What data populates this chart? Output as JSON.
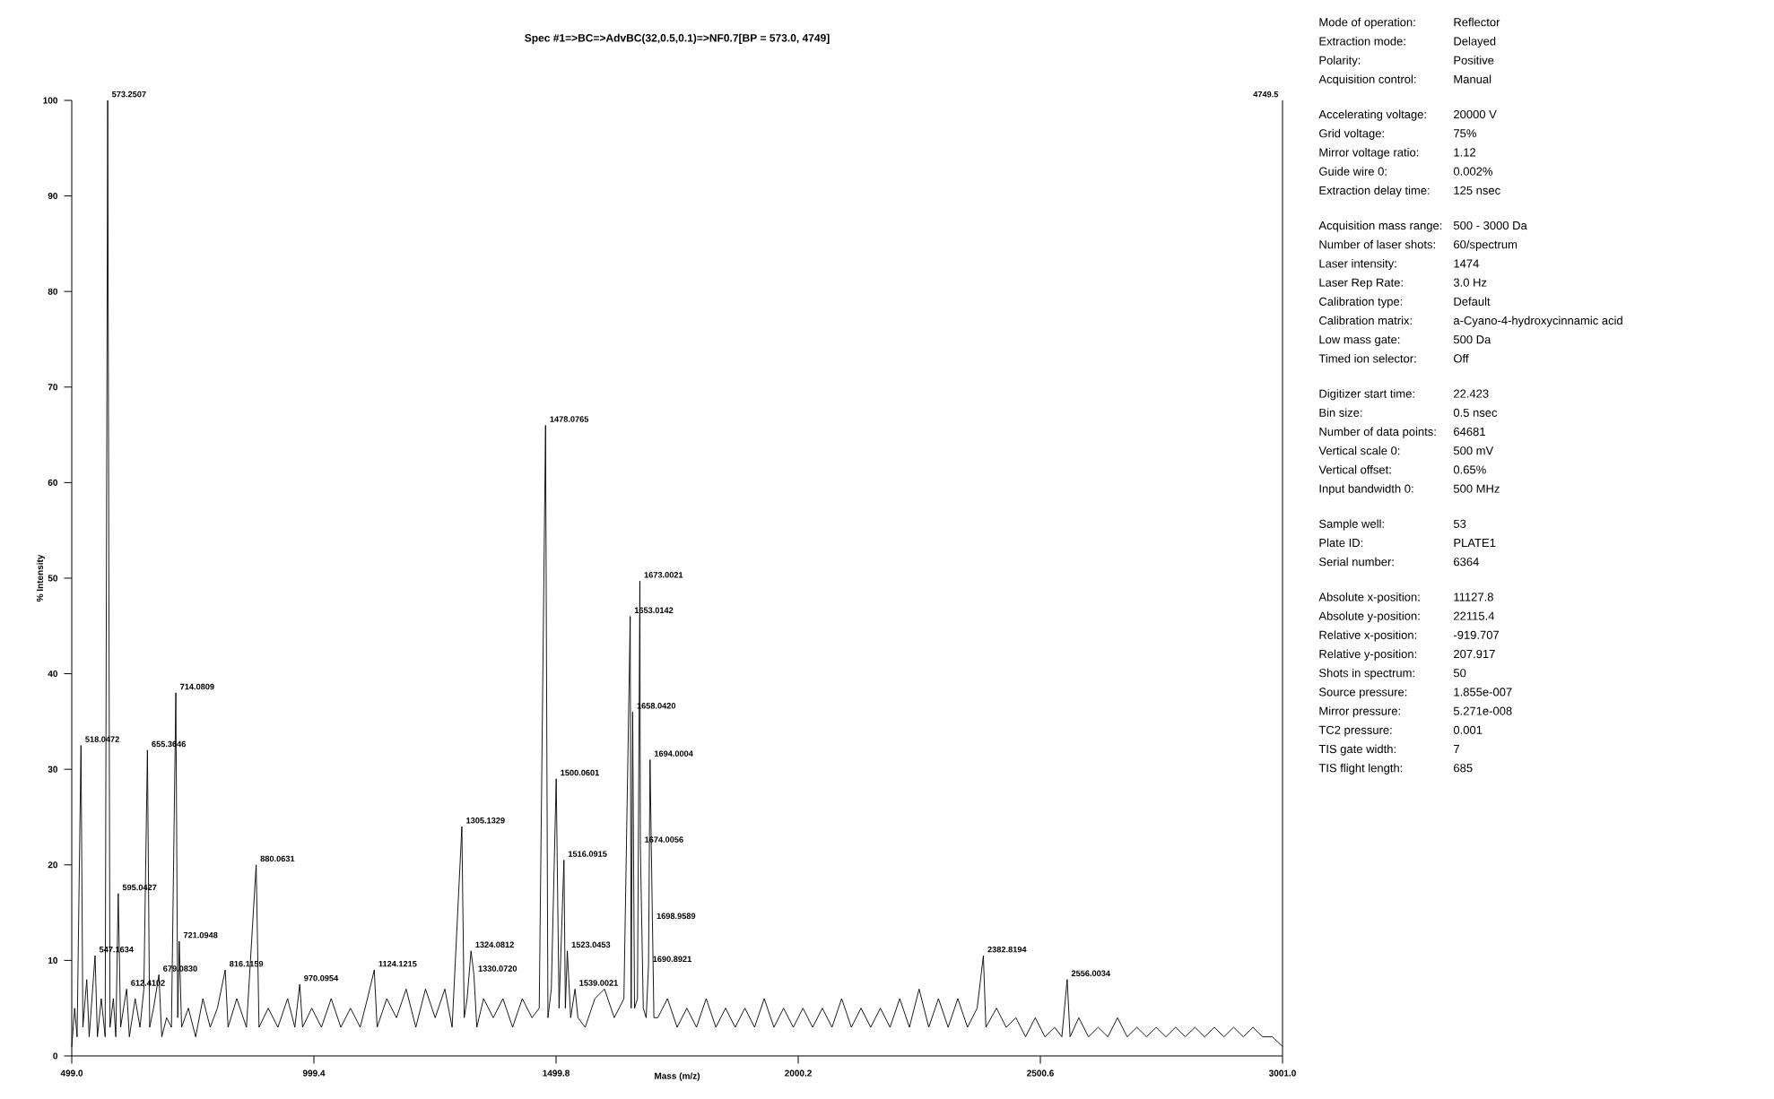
{
  "chart_data": [
    {
      "type": "line",
      "title": "Spec #1=>BC=>AdvBC(32,0.5,0.1)=>NF0.7[BP = 573.0, 4749]",
      "xlabel": "Mass (m/z)",
      "ylabel": "% Intensity",
      "xlim": [
        499.0,
        3001.0
      ],
      "ylim": [
        0,
        100
      ],
      "xticks": [
        {
          "value": 499.0,
          "label": "499.0"
        },
        {
          "value": 999.4,
          "label": "999.4"
        },
        {
          "value": 1499.8,
          "label": "1499.8"
        },
        {
          "value": 2000.2,
          "label": "2000.2"
        },
        {
          "value": 2500.6,
          "label": "2500.6"
        },
        {
          "value": 3001.0,
          "label": "3001.0"
        }
      ],
      "yticks": [
        0,
        10,
        20,
        30,
        40,
        50,
        60,
        70,
        80,
        90,
        100
      ],
      "series": [
        {
          "color": "#000000",
          "x": [
            499,
            505,
            510,
            518.0472,
            522,
            530,
            535,
            547.1634,
            552,
            560,
            568,
            573.2507,
            578,
            585,
            590,
            595.0427,
            600,
            606,
            612.4102,
            618,
            630,
            640,
            648,
            655.3646,
            660,
            668,
            679.083,
            685,
            695,
            705,
            714.0809,
            718,
            721.0948,
            726,
            740,
            755,
            770,
            785,
            800,
            816.1159,
            822,
            840,
            860,
            880.0631,
            886,
            905,
            925,
            945,
            960,
            970.0954,
            976,
            995,
            1015,
            1035,
            1055,
            1075,
            1095,
            1110,
            1124.1215,
            1130,
            1150,
            1170,
            1190,
            1210,
            1230,
            1250,
            1270,
            1285,
            1305.1329,
            1310,
            1316,
            1324.0812,
            1330.072,
            1336,
            1350,
            1370,
            1390,
            1410,
            1430,
            1450,
            1465,
            1478.0765,
            1483,
            1490,
            1500.0601,
            1506,
            1516.0915,
            1519,
            1523.0453,
            1530,
            1539.0021,
            1545,
            1560,
            1580,
            1600,
            1620,
            1640,
            1653.0142,
            1655,
            1658.042,
            1662,
            1668,
            1673.0021,
            1674.0056,
            1680,
            1686,
            1690.8921,
            1694.0004,
            1698.9589,
            1702,
            1710,
            1730,
            1750,
            1770,
            1790,
            1810,
            1830,
            1850,
            1870,
            1890,
            1910,
            1930,
            1950,
            1970,
            1990,
            2010,
            2030,
            2050,
            2070,
            2090,
            2110,
            2130,
            2150,
            2170,
            2190,
            2210,
            2230,
            2250,
            2270,
            2290,
            2310,
            2330,
            2350,
            2370,
            2382.8194,
            2388,
            2410,
            2430,
            2450,
            2470,
            2490,
            2510,
            2530,
            2545,
            2556.0034,
            2562,
            2580,
            2600,
            2620,
            2640,
            2660,
            2680,
            2700,
            2720,
            2740,
            2760,
            2780,
            2800,
            2820,
            2840,
            2860,
            2880,
            2900,
            2920,
            2940,
            2960,
            2980,
            3001
          ],
          "values": [
            1,
            5,
            2,
            32.5,
            3,
            8,
            2,
            10.5,
            2,
            6,
            2,
            100,
            3,
            6,
            2,
            17,
            3,
            5,
            7,
            2,
            6,
            3,
            7,
            32,
            3,
            5,
            8.5,
            2,
            4,
            3,
            38,
            4,
            12,
            3,
            5,
            2,
            6,
            3,
            5,
            9,
            3,
            6,
            3,
            20,
            3,
            5,
            3,
            6,
            3,
            7.5,
            3,
            5,
            3,
            6,
            3,
            5,
            3,
            6,
            9,
            3,
            6,
            4,
            7,
            3,
            7,
            4,
            7,
            3,
            24,
            4,
            6,
            11,
            8.5,
            3,
            6,
            4,
            6,
            3,
            6,
            4,
            5,
            66,
            4,
            7,
            29,
            5,
            20.5,
            5,
            11,
            4,
            7,
            4,
            3,
            6,
            7,
            4,
            6,
            46,
            5,
            36,
            5,
            6,
            49.7,
            22,
            5,
            4,
            9.5,
            31,
            14,
            4,
            4,
            6,
            3,
            5,
            3,
            6,
            3,
            5,
            3,
            5,
            3,
            6,
            3,
            5,
            3,
            5,
            3,
            5,
            3,
            6,
            3,
            5,
            3,
            5,
            3,
            6,
            3,
            7,
            3,
            6,
            3,
            6,
            3,
            5,
            10.5,
            3,
            5,
            3,
            4,
            2,
            4,
            2,
            3,
            2,
            8,
            2,
            4,
            2,
            3,
            2,
            4,
            2,
            3,
            2,
            3,
            2,
            3,
            2,
            3,
            2,
            3,
            2,
            3,
            2,
            3,
            2,
            2,
            1
          ]
        }
      ],
      "annotations": [
        {
          "text": "518.0472",
          "x": 518.0472,
          "y": 32.5
        },
        {
          "text": "547.1634",
          "x": 547.1634,
          "y": 10.5
        },
        {
          "text": "573.2507",
          "x": 573.2507,
          "y": 100
        },
        {
          "text": "595.0427",
          "x": 595.0427,
          "y": 17
        },
        {
          "text": "612.4102",
          "x": 612.4102,
          "y": 7
        },
        {
          "text": "655.3646",
          "x": 655.3646,
          "y": 32
        },
        {
          "text": "679.0830",
          "x": 679.083,
          "y": 8.5
        },
        {
          "text": "714.0809",
          "x": 714.0809,
          "y": 38
        },
        {
          "text": "721.0948",
          "x": 721.0948,
          "y": 12
        },
        {
          "text": "816.1159",
          "x": 816.1159,
          "y": 9
        },
        {
          "text": "880.0631",
          "x": 880.0631,
          "y": 20
        },
        {
          "text": "970.0954",
          "x": 970.0954,
          "y": 7.5
        },
        {
          "text": "1124.1215",
          "x": 1124.1215,
          "y": 9
        },
        {
          "text": "1305.1329",
          "x": 1305.1329,
          "y": 24
        },
        {
          "text": "1324.0812",
          "x": 1324.0812,
          "y": 11
        },
        {
          "text": "1330.0720",
          "x": 1330.072,
          "y": 8.5
        },
        {
          "text": "1478.0765",
          "x": 1478.0765,
          "y": 66
        },
        {
          "text": "1500.0601",
          "x": 1500.0601,
          "y": 29
        },
        {
          "text": "1516.0915",
          "x": 1516.0915,
          "y": 20.5
        },
        {
          "text": "1523.0453",
          "x": 1523.0453,
          "y": 11
        },
        {
          "text": "1539.0021",
          "x": 1539.0021,
          "y": 7
        },
        {
          "text": "1653.0142",
          "x": 1653.0142,
          "y": 46
        },
        {
          "text": "1658.0420",
          "x": 1658.042,
          "y": 36
        },
        {
          "text": "1673.0021",
          "x": 1673.0021,
          "y": 49.7
        },
        {
          "text": "1674.0056",
          "x": 1674.0056,
          "y": 22
        },
        {
          "text": "1690.8921",
          "x": 1690.8921,
          "y": 9.5
        },
        {
          "text": "1694.0004",
          "x": 1694.0004,
          "y": 31
        },
        {
          "text": "1698.9589",
          "x": 1698.9589,
          "y": 14
        },
        {
          "text": "2382.8194",
          "x": 2382.8194,
          "y": 10.5
        },
        {
          "text": "2556.0034",
          "x": 2556.0034,
          "y": 8
        },
        "4749.5"
      ]
    },
    {
      "type": "other",
      "annotations": [
        "Mode of operation:",
        "Reflector",
        "Extraction mode:",
        "Delayed",
        "Polarity:",
        "Positive",
        "Acquisition control:",
        "Manual",
        "Accelerating voltage:",
        "20000 V",
        "Grid voltage:",
        "75%",
        "Mirror voltage ratio:",
        "1.12",
        "Guide wire 0:",
        "0.002%",
        "Extraction delay time:",
        "125 nsec",
        "Acquisition mass range:",
        "500 - 3000 Da",
        "Number of laser shots:",
        "60/spectrum",
        "Laser intensity:",
        "1474",
        "Laser Rep Rate:",
        "3.0 Hz",
        "Calibration type:",
        "Default",
        "Calibration matrix:",
        "a-Cyano-4-hydroxycinnamic acid",
        "Low mass gate:",
        "500 Da",
        "Timed ion selector:",
        "Off",
        "Digitizer start time:",
        "22.423",
        "Bin size:",
        "0.5 nsec",
        "Number of data points:",
        "64681",
        "Vertical scale 0:",
        "500 mV",
        "Vertical offset:",
        "0.65%",
        "Input bandwidth 0:",
        "500 MHz",
        "Sample well:",
        "53",
        "Plate ID:",
        "PLATE1",
        "Serial number:",
        "6364",
        "Absolute x-position:",
        "11127.8",
        "Absolute y-position:",
        "22115.4",
        "Relative x-position:",
        "-919.707",
        "Relative y-position:",
        "207.917",
        "Shots in spectrum:",
        "50",
        "Source pressure:",
        "1.855e-007",
        "Mirror pressure:",
        "5.271e-008",
        "TC2 pressure:",
        "0.001",
        "TIS gate width:",
        "7",
        "TIS flight length:",
        "685"
      ]
    }
  ]
}
